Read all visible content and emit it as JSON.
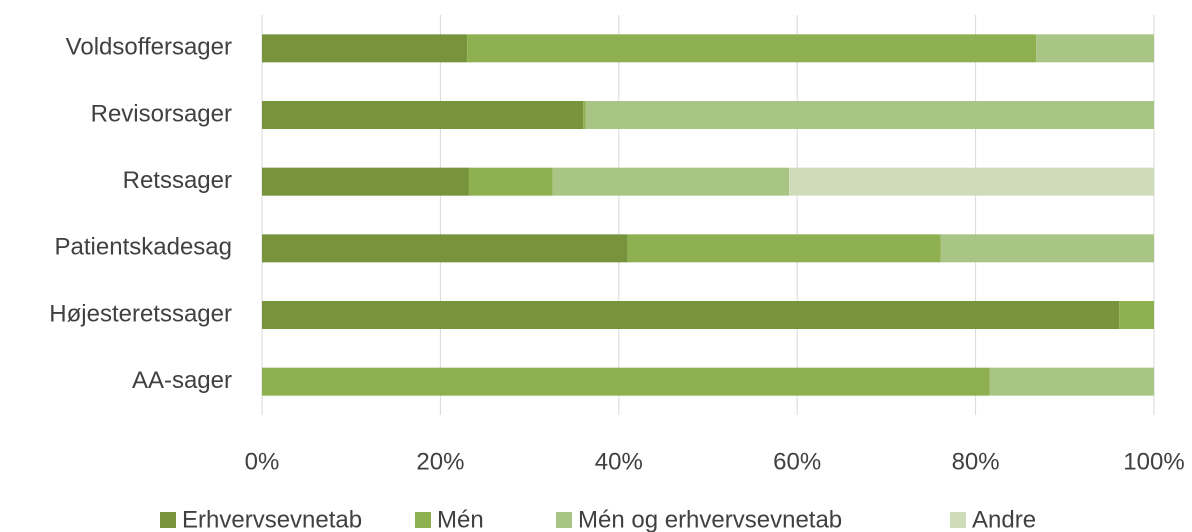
{
  "chart_data": {
    "type": "stacked-bar-horizontal",
    "categories": [
      "Voldsoffersager",
      "Revisorsager",
      "Retssager",
      "Patientskadesag",
      "Højesteretssager",
      "AA-sager"
    ],
    "series": [
      {
        "name": "Erhvervsevnetab",
        "color": "#77933c",
        "values": [
          23,
          36,
          23.2,
          41,
          96.1,
          0
        ]
      },
      {
        "name": "Mén",
        "color": "#8eb050",
        "values": [
          63.8,
          0.3,
          9.4,
          35.1,
          3.9,
          81.6
        ]
      },
      {
        "name": "Mén og erhvervsevnetab",
        "color": "#a9c585",
        "values": [
          13.2,
          63.7,
          26.5,
          23.9,
          0,
          18.4
        ]
      },
      {
        "name": "Andre",
        "color": "#cfdcb9",
        "values": [
          0,
          0,
          40.9,
          0,
          0,
          0
        ]
      }
    ],
    "xlim": [
      0,
      100
    ],
    "xticks": [
      {
        "value": 0,
        "label": "0%"
      },
      {
        "value": 20,
        "label": "20%"
      },
      {
        "value": 40,
        "label": "40%"
      },
      {
        "value": 60,
        "label": "60%"
      },
      {
        "value": 80,
        "label": "80%"
      },
      {
        "value": 100,
        "label": "100%"
      }
    ],
    "grid": true,
    "legend": "bottom"
  }
}
